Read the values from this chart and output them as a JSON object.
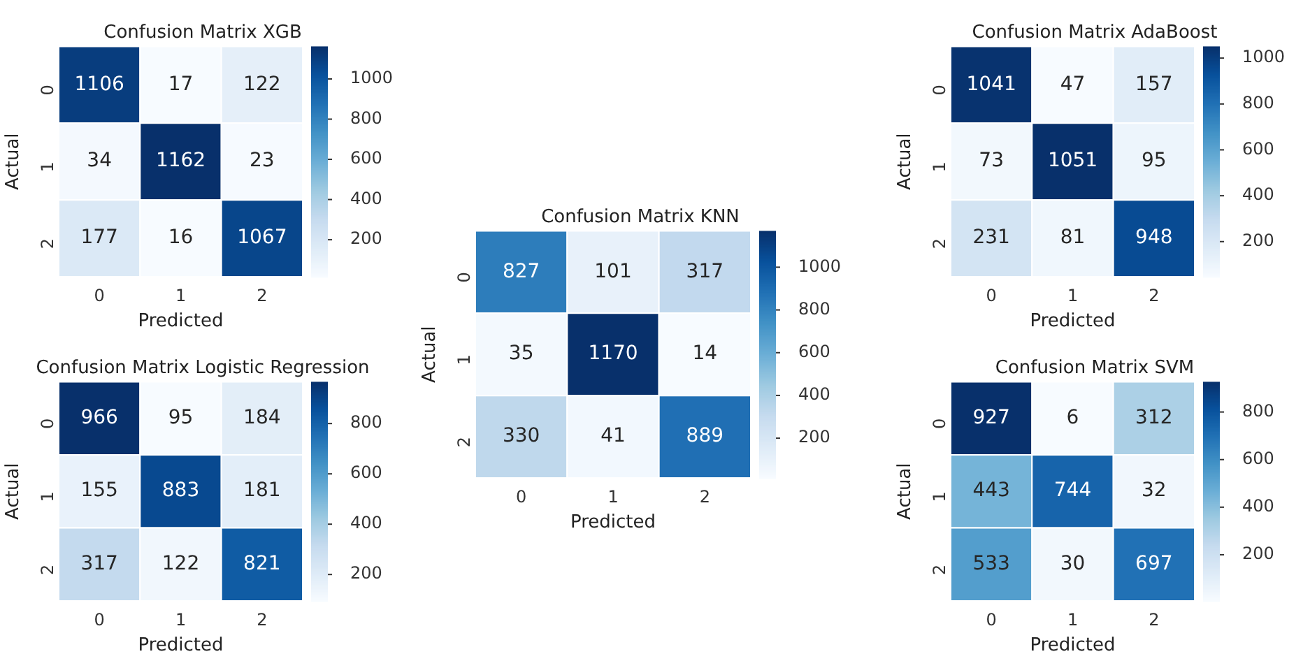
{
  "chart_data": [
    {
      "type": "heatmap",
      "title": "Confusion Matrix XGB",
      "xlabel": "Predicted",
      "ylabel": "Actual",
      "categories": [
        "0",
        "1",
        "2"
      ],
      "y_categories": [
        "0",
        "1",
        "2"
      ],
      "cells": [
        [
          1106,
          17,
          122
        ],
        [
          34,
          1162,
          23
        ],
        [
          177,
          16,
          1067
        ]
      ],
      "clim": [
        16,
        1162
      ],
      "cticks": [
        200,
        400,
        600,
        800,
        1000
      ],
      "data_labels": true
    },
    {
      "type": "heatmap",
      "title": "Confusion Matrix AdaBoost",
      "xlabel": "Predicted",
      "ylabel": "Actual",
      "categories": [
        "0",
        "1",
        "2"
      ],
      "y_categories": [
        "0",
        "1",
        "2"
      ],
      "cells": [
        [
          1041,
          47,
          157
        ],
        [
          73,
          1051,
          95
        ],
        [
          231,
          81,
          948
        ]
      ],
      "clim": [
        47,
        1051
      ],
      "cticks": [
        200,
        400,
        600,
        800,
        1000
      ],
      "data_labels": true
    },
    {
      "type": "heatmap",
      "title": "Confusion Matrix KNN",
      "xlabel": "Predicted",
      "ylabel": "Actual",
      "categories": [
        "0",
        "1",
        "2"
      ],
      "y_categories": [
        "0",
        "1",
        "2"
      ],
      "cells": [
        [
          827,
          101,
          317
        ],
        [
          35,
          1170,
          14
        ],
        [
          330,
          41,
          889
        ]
      ],
      "clim": [
        14,
        1170
      ],
      "cticks": [
        200,
        400,
        600,
        800,
        1000
      ],
      "data_labels": true
    },
    {
      "type": "heatmap",
      "title": "Confusion Matrix Logistic Regression",
      "xlabel": "Predicted",
      "ylabel": "Actual",
      "categories": [
        "0",
        "1",
        "2"
      ],
      "y_categories": [
        "0",
        "1",
        "2"
      ],
      "cells": [
        [
          966,
          95,
          184
        ],
        [
          155,
          883,
          181
        ],
        [
          317,
          122,
          821
        ]
      ],
      "clim": [
        95,
        966
      ],
      "cticks": [
        200,
        400,
        600,
        800
      ],
      "data_labels": true
    },
    {
      "type": "heatmap",
      "title": "Confusion Matrix SVM",
      "xlabel": "Predicted",
      "ylabel": "Actual",
      "categories": [
        "0",
        "1",
        "2"
      ],
      "y_categories": [
        "0",
        "1",
        "2"
      ],
      "cells": [
        [
          927,
          6,
          312
        ],
        [
          443,
          744,
          32
        ],
        [
          533,
          30,
          697
        ]
      ],
      "clim": [
        6,
        927
      ],
      "cticks": [
        200,
        400,
        600,
        800
      ],
      "data_labels": true
    }
  ]
}
